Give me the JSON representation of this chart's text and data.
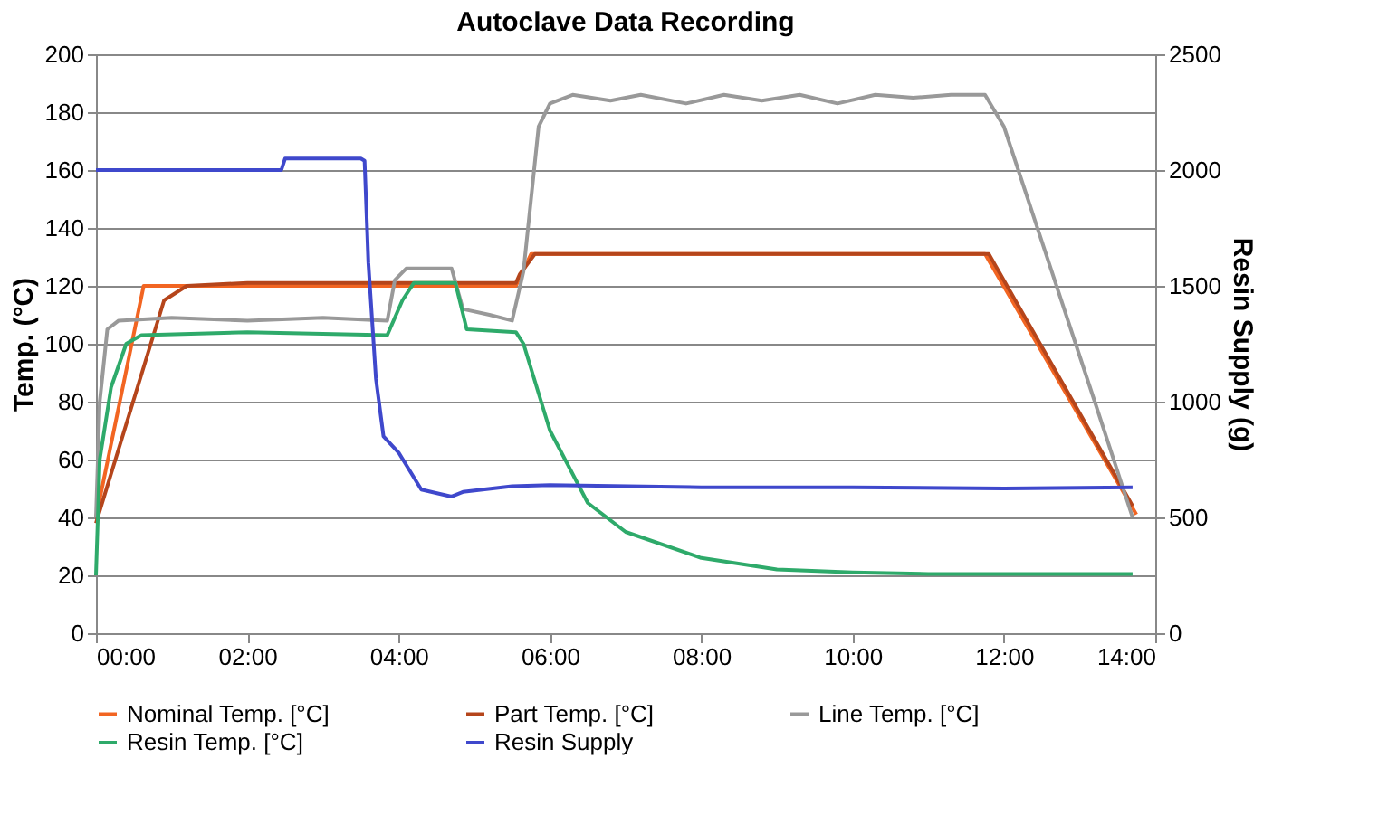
{
  "chart_data": {
    "type": "line",
    "title": "Autoclave Data Recording",
    "ylabel": "Temp. (°C)",
    "y2label": "Resin Supply (g)",
    "xlim": [
      0,
      14
    ],
    "xticks": [
      {
        "value": 0,
        "label": "00:00"
      },
      {
        "value": 2,
        "label": "02:00"
      },
      {
        "value": 4,
        "label": "04:00"
      },
      {
        "value": 6,
        "label": "06:00"
      },
      {
        "value": 8,
        "label": "08:00"
      },
      {
        "value": 10,
        "label": "10:00"
      },
      {
        "value": 12,
        "label": "12:00"
      },
      {
        "value": 14,
        "label": "14:00"
      }
    ],
    "ylim": [
      0,
      200
    ],
    "yticks": [
      0,
      20,
      40,
      60,
      80,
      100,
      120,
      140,
      160,
      180,
      200
    ],
    "y2lim": [
      0,
      2500
    ],
    "y2ticks": [
      0,
      500,
      1000,
      1500,
      2000,
      2500
    ],
    "grid": "y",
    "legend": "bottom",
    "marker": "none",
    "line_style": "solid",
    "series": [
      {
        "name": "Nominal Temp. [°C]",
        "color": "#f26522",
        "x": [
          0,
          0.63,
          5.55,
          5.75,
          11.75,
          13.75
        ],
        "values": [
          40,
          120,
          120,
          131,
          131,
          41
        ]
      },
      {
        "name": "Part Temp. [°C]",
        "color": "#b5451b",
        "x": [
          0,
          0.9,
          1.2,
          2,
          3.5,
          5.55,
          5.6,
          5.8,
          11.8,
          13.7
        ],
        "values": [
          38,
          115,
          120,
          121,
          121,
          121,
          124,
          131,
          131,
          44
        ]
      },
      {
        "name": "Line Temp. [°C]",
        "color": "#999999",
        "x": [
          0,
          0.05,
          0.15,
          0.3,
          1,
          2,
          3,
          3.85,
          3.95,
          4.1,
          4.7,
          4.85,
          5.2,
          5.5,
          5.65,
          5.75,
          5.85,
          6,
          6.3,
          6.8,
          7.2,
          7.8,
          8.3,
          8.8,
          9.3,
          9.8,
          10.3,
          10.8,
          11.3,
          11.75,
          12,
          13.2,
          13.7
        ],
        "values": [
          40,
          80,
          105,
          108,
          109,
          108,
          109,
          108,
          122,
          126,
          126,
          112,
          110,
          108,
          125,
          150,
          175,
          183,
          186,
          184,
          186,
          183,
          186,
          184,
          186,
          183,
          186,
          185,
          186,
          186,
          175,
          80,
          40
        ]
      },
      {
        "name": "Resin Temp. [°C]",
        "color": "#2eaa6a",
        "x": [
          0,
          0.05,
          0.2,
          0.4,
          0.6,
          2,
          3.85,
          4.05,
          4.2,
          4.75,
          4.9,
          5.55,
          5.65,
          6,
          6.5,
          7,
          8,
          9,
          10,
          11,
          13.7
        ],
        "values": [
          20,
          60,
          85,
          100,
          103,
          104,
          103,
          115,
          121,
          121,
          105,
          104,
          100,
          70,
          45,
          35,
          26,
          22,
          21,
          20.5,
          20.5
        ]
      },
      {
        "name": "Resin Supply",
        "color": "#3f48cc",
        "axis": "y2",
        "x": [
          0,
          2.45,
          2.5,
          3.5,
          3.55,
          3.6,
          3.7,
          3.8,
          4,
          4.3,
          4.7,
          4.85,
          5.5,
          6,
          8,
          10,
          12,
          13.7
        ],
        "values": [
          2000,
          2000,
          2050,
          2050,
          2040,
          1600,
          1100,
          850,
          780,
          620,
          590,
          610,
          635,
          640,
          630,
          630,
          625,
          630
        ]
      }
    ]
  }
}
